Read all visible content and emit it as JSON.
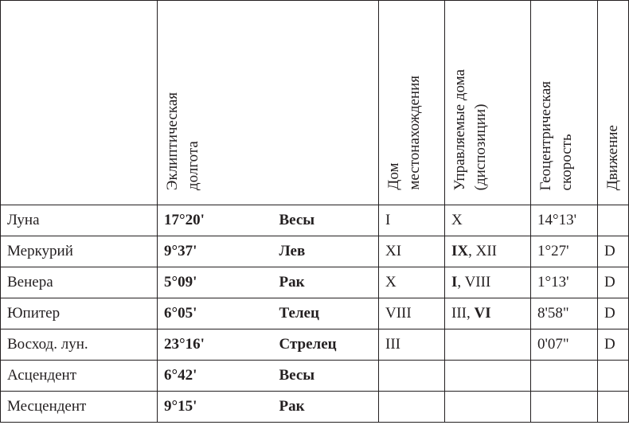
{
  "header": {
    "columns": [
      {
        "lines": [
          "Эклиптическая",
          "долгота"
        ]
      },
      {
        "lines": [
          "Дом",
          "местонахождения"
        ]
      },
      {
        "lines": [
          "Управляемые дома",
          "(диспозиции)"
        ]
      },
      {
        "lines": [
          "Геоцентрическая",
          "скорость"
        ]
      },
      {
        "lines": [
          "Движение"
        ]
      }
    ]
  },
  "rows": [
    {
      "body": "Луна",
      "longitude": "17°20'",
      "sign": "Весы",
      "house": "I",
      "rules": [
        {
          "text": "X"
        }
      ],
      "speed": "14°13'"
    },
    {
      "body": "Меркурий",
      "longitude": "9°37'",
      "sign": "Лев",
      "house": "XI",
      "rules": [
        {
          "text": "IX",
          "bold": true
        },
        {
          "text": ", XII"
        }
      ],
      "speed": "1°27'",
      "motion": "D"
    },
    {
      "body": "Венера",
      "longitude": "5°09'",
      "sign": "Рак",
      "house": "X",
      "rules": [
        {
          "text": "I",
          "bold": true
        },
        {
          "text": ", VIII"
        }
      ],
      "speed": "1°13'",
      "motion": "D"
    },
    {
      "body": "Юпитер",
      "longitude": "6°05'",
      "sign": "Телец",
      "house": "VIII",
      "rules": [
        {
          "text": "III, "
        },
        {
          "text": "VI",
          "bold": true
        }
      ],
      "speed": "8'58\"",
      "motion": "D"
    },
    {
      "body": "Восход. лун.",
      "longitude": "23°16'",
      "sign": "Стрелец",
      "house": "III",
      "speed": "0'07\"",
      "motion": "D"
    },
    {
      "body": "Асцендент",
      "longitude": "6°42'",
      "sign": "Весы"
    },
    {
      "body": "Месцендент",
      "longitude": "9°15'",
      "sign": "Рак"
    }
  ]
}
